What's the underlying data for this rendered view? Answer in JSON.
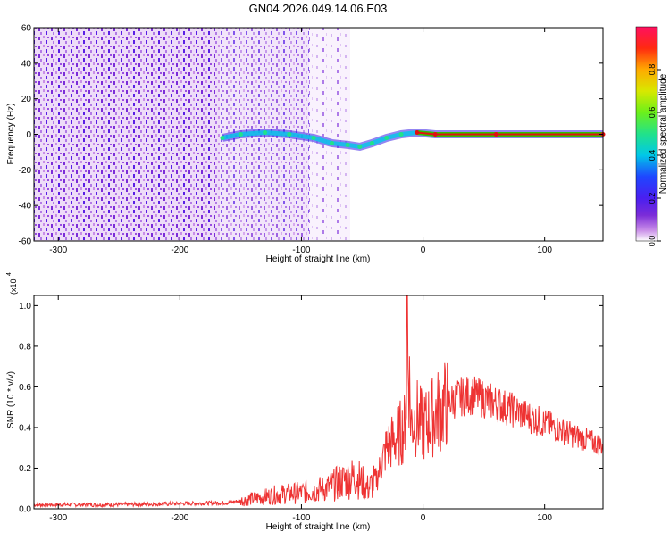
{
  "title": "GN04.2026.049.14.06.E03",
  "colors": {
    "snr_line": "#ee3333",
    "trace": "#e01010",
    "trace_core": "#30c000"
  },
  "chart_data": [
    {
      "type": "heatmap",
      "xlabel": "Height of straight line (km)",
      "ylabel": "Frequency (Hz)",
      "xlim": [
        -320,
        148
      ],
      "ylim": [
        -60,
        60
      ],
      "x_ticks": [
        -300,
        -200,
        -100,
        0,
        100
      ],
      "y_ticks": [
        -60,
        -40,
        -20,
        0,
        20,
        40,
        60
      ],
      "colorbar": {
        "label": "Normalized spectral amplitude",
        "range": [
          0,
          1
        ],
        "ticks": [
          "0.0",
          "0.2",
          "0.4",
          "0.6",
          "0.8"
        ],
        "colormap": [
          "#ffffff",
          "#c98ee8",
          "#7b2cd8",
          "#4a1ff0",
          "#1f46ff",
          "#00c8e8",
          "#21e28a",
          "#6cf01a",
          "#d8e800",
          "#ffaa00",
          "#ff2a10",
          "#ff1060"
        ]
      },
      "trace_points": [
        {
          "x": -165,
          "y": -2
        },
        {
          "x": -150,
          "y": 0
        },
        {
          "x": -130,
          "y": 1
        },
        {
          "x": -110,
          "y": 0
        },
        {
          "x": -90,
          "y": -2
        },
        {
          "x": -75,
          "y": -5
        },
        {
          "x": -62,
          "y": -6
        },
        {
          "x": -52,
          "y": -7
        },
        {
          "x": -42,
          "y": -5
        },
        {
          "x": -30,
          "y": -2
        },
        {
          "x": -18,
          "y": 0
        },
        {
          "x": -5,
          "y": 1
        },
        {
          "x": 10,
          "y": 0
        },
        {
          "x": 60,
          "y": 0
        },
        {
          "x": 148,
          "y": 0
        }
      ]
    },
    {
      "type": "line",
      "xlabel": "Height of straight line (km)",
      "ylabel": "SNR (10 * v/v)",
      "y_multiplier_label": "(x10",
      "y_multiplier_exp": "4",
      "xlim": [
        -320,
        148
      ],
      "ylim": [
        0,
        1.05
      ],
      "x_ticks": [
        -300,
        -200,
        -100,
        0,
        100
      ],
      "y_ticks": [
        0.0,
        0.2,
        0.4,
        0.6,
        0.8,
        1.0
      ],
      "series": [
        {
          "x": [
            -320,
            -260,
            -200,
            -160,
            -140,
            -120,
            -100,
            -80,
            -65,
            -55,
            -45,
            -38,
            -30,
            -22,
            -15,
            -12,
            -10,
            -5,
            0,
            10,
            20,
            30,
            40,
            60,
            80,
            100,
            120,
            148
          ],
          "y": [
            0.02,
            0.02,
            0.025,
            0.03,
            0.05,
            0.07,
            0.08,
            0.1,
            0.14,
            0.16,
            0.1,
            0.15,
            0.3,
            0.35,
            0.4,
            0.75,
            0.42,
            0.45,
            0.4,
            0.47,
            0.52,
            0.55,
            0.56,
            0.52,
            0.47,
            0.42,
            0.37,
            0.31
          ]
        }
      ],
      "spike": {
        "x": -13,
        "y": 1.05
      }
    }
  ]
}
